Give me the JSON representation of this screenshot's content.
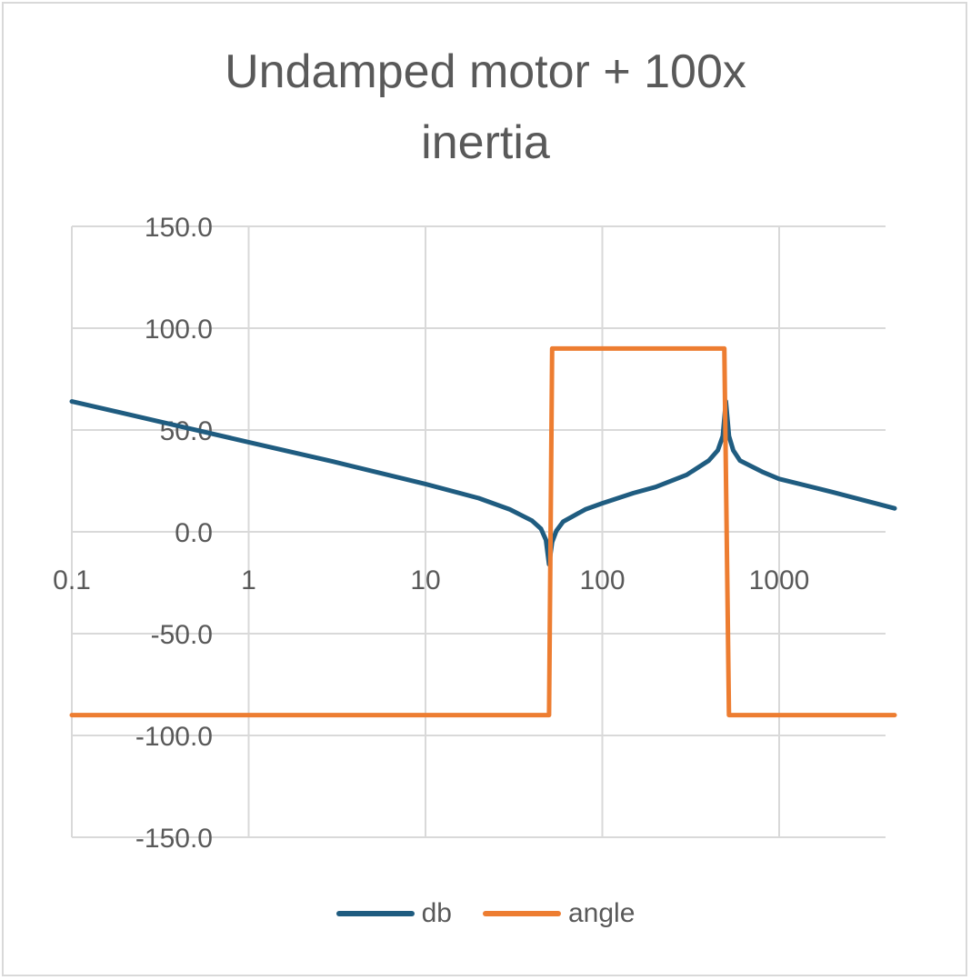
{
  "chart_data": {
    "type": "line",
    "title_lines": [
      "Undamped motor + 100x",
      "inertia"
    ],
    "x_scale": "log",
    "xlim": [
      0.1,
      4500
    ],
    "ylim": [
      -150,
      150
    ],
    "x_ticks": [
      "0.1",
      "1",
      "10",
      "100",
      "1000"
    ],
    "y_ticks": [
      "150.0",
      "100.0",
      "50.0",
      "0.0",
      "-50.0",
      "-100.0",
      "-150.0"
    ],
    "grid": true,
    "legend_position": "bottom",
    "series": [
      {
        "name": "db",
        "color": "#1f5c80",
        "x": [
          0.1,
          0.3,
          1,
          3,
          10,
          20,
          30,
          40,
          45,
          48,
          50,
          52,
          55,
          60,
          80,
          100,
          150,
          200,
          300,
          400,
          450,
          480,
          500,
          520,
          550,
          600,
          800,
          1000,
          2000,
          4500
        ],
        "y": [
          64,
          54.5,
          44,
          34.5,
          23.5,
          16.5,
          11,
          5.5,
          1.5,
          -4,
          -16,
          -5,
          0.5,
          5,
          11,
          14,
          19,
          22,
          28,
          35,
          40,
          47,
          64,
          47,
          40,
          35,
          29.5,
          26,
          19.5,
          11.5
        ]
      },
      {
        "name": "angle",
        "color": "#ed7d31",
        "x": [
          0.1,
          50,
          52,
          490,
          520,
          4500
        ],
        "y": [
          -90,
          -90,
          90,
          90,
          -90,
          -90
        ]
      }
    ]
  }
}
